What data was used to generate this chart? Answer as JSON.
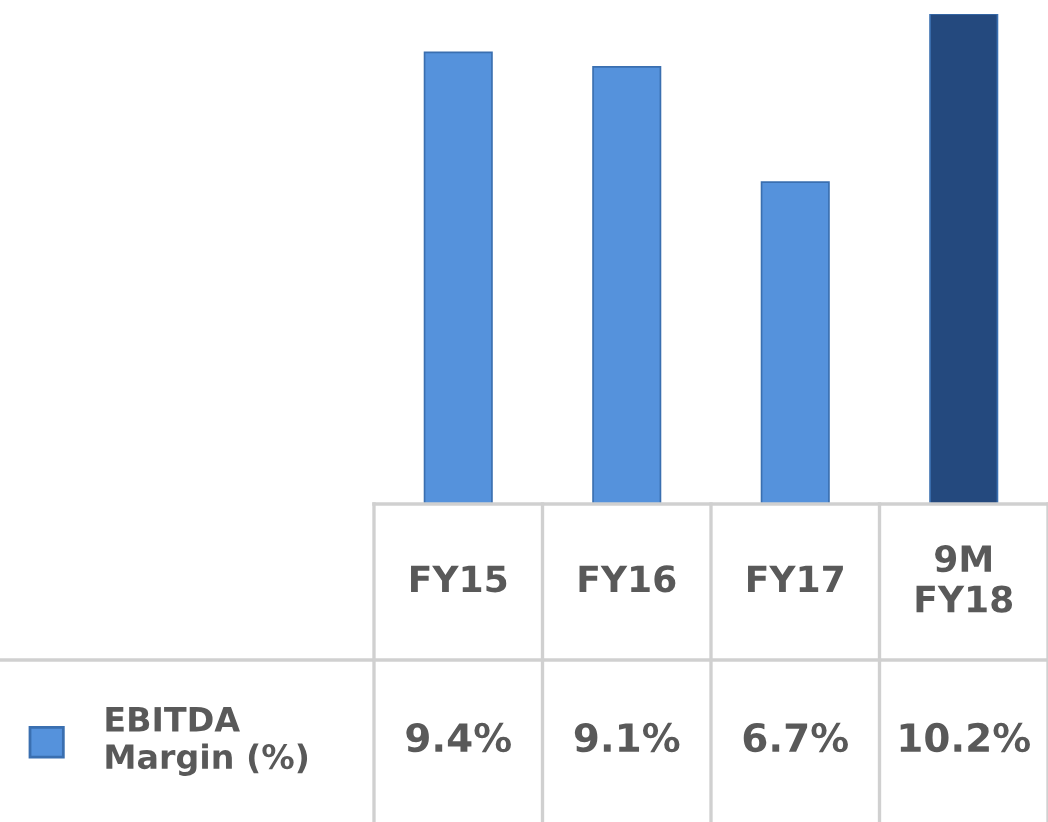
{
  "chart_data": {
    "type": "bar",
    "categories": [
      "FY15",
      "FY16",
      "FY17",
      "9M FY18"
    ],
    "series": [
      {
        "name": "EBITDA Margin (%)",
        "color": "#5592dc",
        "colors": [
          "#5592dc",
          "#5592dc",
          "#5592dc",
          "#24497e"
        ],
        "values": [
          9.4,
          9.1,
          6.7,
          10.2
        ],
        "value_labels": [
          "9.4%",
          "9.1%",
          "6.7%",
          "10.2%"
        ]
      }
    ],
    "legend": "bottom left"
  }
}
